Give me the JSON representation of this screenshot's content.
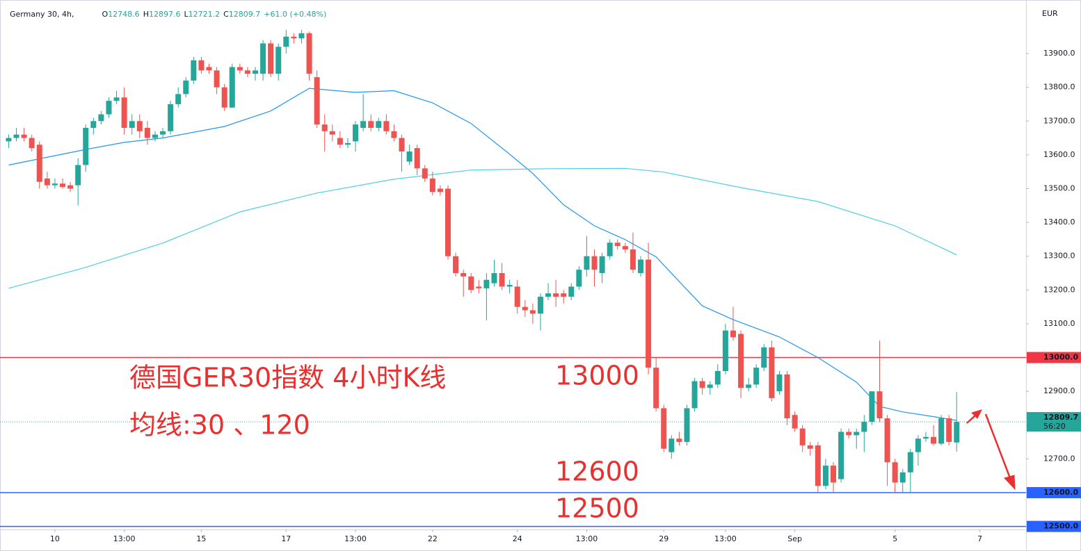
{
  "chart_data": {
    "type": "candlestick",
    "symbol": "Germany 30, 4h,",
    "ohlc_header": [
      {
        "label": "O",
        "value": "12748.6"
      },
      {
        "label": "H",
        "value": "12897.6"
      },
      {
        "label": "L",
        "value": "12721.2"
      },
      {
        "label": "C",
        "value": "12809.7"
      }
    ],
    "change": "+61.0 (+0.48%)",
    "currency": "EUR",
    "up_color": "#26a69a",
    "down_color": "#ef5350",
    "candles": [
      [
        13640,
        13660,
        13620,
        13650
      ],
      [
        13650,
        13680,
        13640,
        13660
      ],
      [
        13660,
        13680,
        13640,
        13650
      ],
      [
        13650,
        13660,
        13610,
        13620
      ],
      [
        13630,
        13640,
        13500,
        13520
      ],
      [
        13530,
        13550,
        13500,
        13510
      ],
      [
        13510,
        13530,
        13500,
        13515
      ],
      [
        13515,
        13530,
        13500,
        13505
      ],
      [
        13510,
        13520,
        13490,
        13500
      ],
      [
        13510,
        13590,
        13450,
        13570
      ],
      [
        13570,
        13690,
        13550,
        13680
      ],
      [
        13680,
        13710,
        13660,
        13700
      ],
      [
        13700,
        13730,
        13690,
        13720
      ],
      [
        13720,
        13770,
        13710,
        13760
      ],
      [
        13760,
        13790,
        13750,
        13770
      ],
      [
        13770,
        13800,
        13660,
        13680
      ],
      [
        13680,
        13720,
        13660,
        13700
      ],
      [
        13700,
        13720,
        13650,
        13670
      ],
      [
        13680,
        13700,
        13630,
        13650
      ],
      [
        13650,
        13670,
        13640,
        13660
      ],
      [
        13660,
        13680,
        13650,
        13670
      ],
      [
        13670,
        13760,
        13660,
        13750
      ],
      [
        13750,
        13800,
        13740,
        13780
      ],
      [
        13780,
        13830,
        13770,
        13820
      ],
      [
        13820,
        13890,
        13810,
        13880
      ],
      [
        13880,
        13890,
        13840,
        13850
      ],
      [
        13860,
        13870,
        13840,
        13850
      ],
      [
        13850,
        13860,
        13780,
        13800
      ],
      [
        13800,
        13810,
        13730,
        13740
      ],
      [
        13740,
        13870,
        13740,
        13860
      ],
      [
        13860,
        13870,
        13840,
        13850
      ],
      [
        13850,
        13860,
        13830,
        13840
      ],
      [
        13840,
        13860,
        13820,
        13850
      ],
      [
        13840,
        13940,
        13820,
        13930
      ],
      [
        13930,
        13940,
        13830,
        13840
      ],
      [
        13840,
        13930,
        13820,
        13920
      ],
      [
        13920,
        13970,
        13900,
        13950
      ],
      [
        13950,
        13960,
        13930,
        13945
      ],
      [
        13945,
        13970,
        13930,
        13960
      ],
      [
        13960,
        13965,
        13820,
        13840
      ],
      [
        13830,
        13850,
        13680,
        13690
      ],
      [
        13690,
        13720,
        13610,
        13670
      ],
      [
        13670,
        13690,
        13640,
        13660
      ],
      [
        13650,
        13670,
        13620,
        13630
      ],
      [
        13630,
        13650,
        13620,
        13635
      ],
      [
        13640,
        13700,
        13610,
        13690
      ],
      [
        13680,
        13780,
        13670,
        13700
      ],
      [
        13700,
        13720,
        13670,
        13680
      ],
      [
        13680,
        13710,
        13670,
        13700
      ],
      [
        13700,
        13720,
        13660,
        13670
      ],
      [
        13670,
        13690,
        13640,
        13650
      ],
      [
        13650,
        13660,
        13550,
        13610
      ],
      [
        13580,
        13630,
        13570,
        13610
      ],
      [
        13620,
        13630,
        13540,
        13560
      ],
      [
        13560,
        13570,
        13520,
        13530
      ],
      [
        13530,
        13550,
        13480,
        13490
      ],
      [
        13500,
        13510,
        13480,
        13490
      ],
      [
        13500,
        13510,
        13290,
        13300
      ],
      [
        13300,
        13310,
        13240,
        13250
      ],
      [
        13250,
        13260,
        13180,
        13240
      ],
      [
        13240,
        13250,
        13190,
        13200
      ],
      [
        13210,
        13230,
        13190,
        13205
      ],
      [
        13205,
        13250,
        13110,
        13230
      ],
      [
        13220,
        13290,
        13210,
        13250
      ],
      [
        13250,
        13280,
        13200,
        13210
      ],
      [
        13210,
        13230,
        13190,
        13215
      ],
      [
        13210,
        13230,
        13130,
        13150
      ],
      [
        13150,
        13170,
        13120,
        13140
      ],
      [
        13140,
        13160,
        13100,
        13130
      ],
      [
        13130,
        13190,
        13080,
        13180
      ],
      [
        13180,
        13220,
        13170,
        13190
      ],
      [
        13190,
        13230,
        13150,
        13180
      ],
      [
        13190,
        13200,
        13160,
        13180
      ],
      [
        13180,
        13220,
        13170,
        13210
      ],
      [
        13210,
        13270,
        13200,
        13260
      ],
      [
        13260,
        13360,
        13240,
        13300
      ],
      [
        13300,
        13320,
        13210,
        13260
      ],
      [
        13250,
        13310,
        13220,
        13300
      ],
      [
        13300,
        13350,
        13290,
        13340
      ],
      [
        13340,
        13350,
        13320,
        13330
      ],
      [
        13330,
        13340,
        13310,
        13320
      ],
      [
        13320,
        13370,
        13250,
        13260
      ],
      [
        13250,
        13300,
        13240,
        13290
      ],
      [
        13290,
        13340,
        12950,
        12970
      ],
      [
        12970,
        13000,
        12840,
        12850
      ],
      [
        12850,
        12860,
        12720,
        12730
      ],
      [
        12720,
        12770,
        12700,
        12760
      ],
      [
        12760,
        12780,
        12740,
        12750
      ],
      [
        12750,
        12860,
        12740,
        12850
      ],
      [
        12850,
        12940,
        12840,
        12930
      ],
      [
        12930,
        12940,
        12890,
        12910
      ],
      [
        12910,
        12930,
        12890,
        12920
      ],
      [
        12920,
        12980,
        12910,
        12960
      ],
      [
        12960,
        13100,
        12950,
        13080
      ],
      [
        13080,
        13150,
        13050,
        13060
      ],
      [
        13070,
        13080,
        12880,
        12910
      ],
      [
        12910,
        12940,
        12900,
        12920
      ],
      [
        12920,
        12980,
        12910,
        12970
      ],
      [
        12970,
        13040,
        12960,
        13030
      ],
      [
        13030,
        13050,
        12870,
        12880
      ],
      [
        12900,
        12960,
        12890,
        12950
      ],
      [
        12950,
        12960,
        12800,
        12820
      ],
      [
        12830,
        12840,
        12780,
        12790
      ],
      [
        12790,
        12800,
        12720,
        12740
      ],
      [
        12740,
        12750,
        12710,
        12730
      ],
      [
        12740,
        12750,
        12600,
        12620
      ],
      [
        12620,
        12700,
        12610,
        12680
      ],
      [
        12680,
        12690,
        12600,
        12630
      ],
      [
        12640,
        12790,
        12630,
        12780
      ],
      [
        12780,
        12790,
        12760,
        12770
      ],
      [
        12770,
        12790,
        12730,
        12780
      ],
      [
        12780,
        12830,
        12720,
        12810
      ],
      [
        12810,
        12900,
        12800,
        12900
      ],
      [
        12900,
        13050,
        12810,
        12820
      ],
      [
        12820,
        12830,
        12620,
        12690
      ],
      [
        12690,
        12700,
        12600,
        12630
      ],
      [
        12630,
        12670,
        12600,
        12660
      ],
      [
        12660,
        12730,
        12600,
        12720
      ],
      [
        12720,
        12770,
        12680,
        12760
      ],
      [
        12760,
        12780,
        12750,
        12765
      ],
      [
        12765,
        12800,
        12740,
        12745
      ],
      [
        12745,
        12830,
        12740,
        12820
      ],
      [
        12820,
        12830,
        12740,
        12750
      ],
      [
        12748.6,
        12897.6,
        12721.2,
        12809.7
      ]
    ],
    "lines": [
      {
        "color": "#2196f3",
        "x": [
          0,
          10,
          15,
          20,
          28,
          34,
          39,
          45,
          50,
          55,
          60,
          65,
          68,
          72,
          76,
          80,
          84,
          87,
          90,
          94,
          100,
          105,
          110,
          113,
          116,
          120,
          123
        ],
        "values": [
          13570,
          13616,
          13637,
          13650,
          13684,
          13730,
          13797,
          13785,
          13790,
          13754,
          13693,
          13602,
          13545,
          13452,
          13390,
          13349,
          13298,
          13225,
          13153,
          13112,
          13061,
          13000,
          12927,
          12855,
          12839,
          12825,
          12814
        ]
      },
      {
        "color": "#4dd0e1",
        "x": [
          0,
          10,
          20,
          30,
          40,
          50,
          60,
          70,
          80,
          85,
          95,
          105,
          115,
          123
        ],
        "values": [
          13205,
          13267,
          13339,
          13431,
          13487,
          13528,
          13555,
          13559,
          13560,
          13549,
          13503,
          13462,
          13390,
          13304
        ]
      }
    ],
    "hlines": [
      {
        "value": 13000,
        "label": "13000.0",
        "color": "#f23645"
      },
      {
        "value": 12600,
        "label": "12600.0",
        "color": "#2962ff"
      },
      {
        "value": 12500,
        "label": "12500.0",
        "color": "#2962ff"
      }
    ],
    "last_price": {
      "value": 12809.7,
      "label": "12809.7",
      "countdown": "56:20",
      "color": "#26a69a"
    },
    "ylim": [
      12491,
      14042
    ],
    "yticks": [
      {
        "value": 12700,
        "label": "12700.0"
      },
      {
        "value": 12800,
        "label": "12800.0"
      },
      {
        "value": 12900,
        "label": "12900.0"
      },
      {
        "value": 13000,
        "label": "13000.0"
      },
      {
        "value": 13100,
        "label": "13100.0"
      },
      {
        "value": 13200,
        "label": "13200.0"
      },
      {
        "value": 13300,
        "label": "13300.0"
      },
      {
        "value": 13400,
        "label": "13400.0"
      },
      {
        "value": 13500,
        "label": "13500.0"
      },
      {
        "value": 13600,
        "label": "13600.0"
      },
      {
        "value": 13700,
        "label": "13700.0"
      },
      {
        "value": 13800,
        "label": "13800.0"
      },
      {
        "value": 13900,
        "label": "13900.0"
      }
    ],
    "xlim": [
      -0.4,
      132
    ],
    "xticks": [
      {
        "value": 6,
        "label": "10"
      },
      {
        "value": 15,
        "label": "13:00"
      },
      {
        "value": 25,
        "label": "15"
      },
      {
        "value": 36,
        "label": "17"
      },
      {
        "value": 45,
        "label": "13:00"
      },
      {
        "value": 55,
        "label": "22"
      },
      {
        "value": 66,
        "label": "24"
      },
      {
        "value": 75,
        "label": "13:00"
      },
      {
        "value": 85,
        "label": "29"
      },
      {
        "value": 93,
        "label": "13:00"
      },
      {
        "value": 102,
        "label": "Sep"
      },
      {
        "value": 115,
        "label": "5"
      },
      {
        "value": 126,
        "label": "7"
      }
    ],
    "annotations": [
      "德国GER30指数 4小时K线",
      "均线:30 、120",
      "13000",
      "12600",
      "12500"
    ]
  }
}
